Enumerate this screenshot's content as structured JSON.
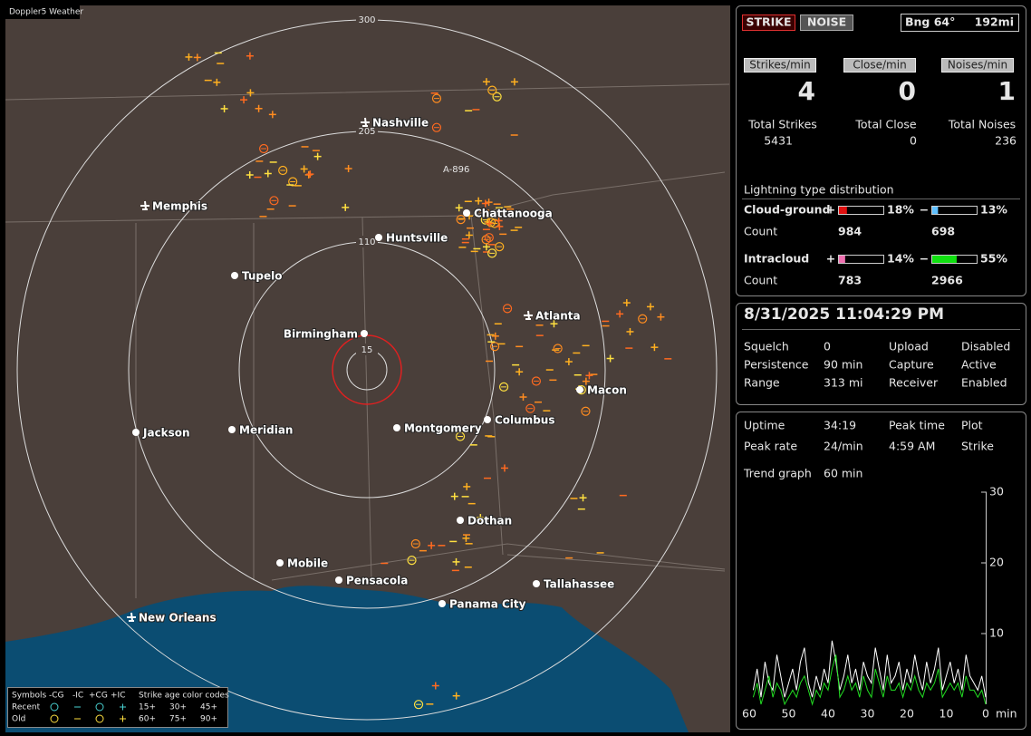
{
  "app": {
    "title": "Doppler5 Weather"
  },
  "map": {
    "ring_labels": [
      "300",
      "205",
      "110",
      "15"
    ],
    "station_label": "A-896",
    "cities": [
      "Nashville",
      "Memphis",
      "Huntsville",
      "Chattanooga",
      "Tupelo",
      "Birmingham",
      "Atlanta",
      "Macon",
      "Jackson",
      "Meridian",
      "Montgomery",
      "Columbus",
      "Dothan",
      "Mobile",
      "Pensacola",
      "Tallahassee",
      "Panama City",
      "New Orleans"
    ]
  },
  "legend": {
    "header": [
      "Symbols",
      "-CG",
      "-IC",
      "+CG",
      "+IC",
      "Strike age color codes"
    ],
    "recent": "Recent",
    "old": "Old",
    "recent_ages": [
      "15+",
      "30+",
      "45+"
    ],
    "old_ages": [
      "60+",
      "75+",
      "90+"
    ]
  },
  "counters": {
    "buttons": [
      "STRIKE",
      "NOISE"
    ],
    "bearing": "Bng 64°",
    "distance": "192mi",
    "rates": [
      {
        "label": "Strikes/min",
        "value": 4
      },
      {
        "label": "Close/min",
        "value": 0
      },
      {
        "label": "Noises/min",
        "value": 1
      }
    ],
    "totals": [
      {
        "label": "Total Strikes",
        "value": 5431
      },
      {
        "label": "Total Close",
        "value": 0
      },
      {
        "label": "Total Noises",
        "value": 236
      }
    ]
  },
  "distribution": {
    "title": "Lightning type distribution",
    "rows": [
      {
        "label": "Cloud-ground",
        "count_label": "Count",
        "positive": {
          "sign": "+",
          "percent": {
            "value": 18,
            "label": "18%"
          },
          "count": 984
        },
        "negative": {
          "sign": "−",
          "percent": {
            "value": 13,
            "label": "13%"
          },
          "count": 698
        }
      },
      {
        "label": "Intracloud",
        "count_label": "Count",
        "positive": {
          "sign": "+",
          "percent": {
            "value": 14,
            "label": "14%"
          },
          "count": 783
        },
        "negative": {
          "sign": "−",
          "percent": {
            "value": 55,
            "label": "55%"
          },
          "count": 2966
        }
      }
    ]
  },
  "status": {
    "datetime": "8/31/2025 11:04:29 PM",
    "left": [
      {
        "label": "Squelch",
        "value": "0"
      },
      {
        "label": "Persistence",
        "value": "90 min"
      },
      {
        "label": "Range",
        "value": "313 mi"
      }
    ],
    "right": [
      {
        "label": "Upload",
        "value": "Disabled"
      },
      {
        "label": "Capture",
        "value": "Active"
      },
      {
        "label": "Receiver",
        "value": "Enabled"
      }
    ]
  },
  "info": {
    "uptime": {
      "label": "Uptime",
      "value": "34:19"
    },
    "peak_rate": {
      "label": "Peak rate",
      "value": "24/min"
    },
    "peak_time": {
      "label": "Peak time",
      "value": "4:59 AM"
    },
    "plot": {
      "label": "Plot",
      "value": "Strike"
    },
    "trend": {
      "label": "Trend graph",
      "value": "60 min"
    }
  },
  "chart_data": {
    "type": "line",
    "x_unit": "min",
    "xlim": [
      60,
      0
    ],
    "xticks": [
      60,
      50,
      40,
      30,
      20,
      10,
      0
    ],
    "ylim": [
      0,
      30
    ],
    "yticks": [
      10,
      20,
      30
    ],
    "x": [
      59,
      58,
      57,
      56,
      55,
      54,
      53,
      52,
      51,
      50,
      49,
      48,
      47,
      46,
      45,
      44,
      43,
      42,
      41,
      40,
      39,
      38,
      37,
      36,
      35,
      34,
      33,
      32,
      31,
      30,
      29,
      28,
      27,
      26,
      25,
      24,
      23,
      22,
      21,
      20,
      19,
      18,
      17,
      16,
      15,
      14,
      13,
      12,
      11,
      10,
      9,
      8,
      7,
      6,
      5,
      4,
      3,
      2,
      1,
      0
    ],
    "series": [
      {
        "name": "Strike",
        "color": "#ffffff",
        "values": [
          2,
          5,
          1,
          6,
          3,
          2,
          7,
          4,
          1,
          3,
          5,
          2,
          6,
          8,
          3,
          1,
          4,
          2,
          5,
          3,
          9,
          6,
          2,
          4,
          7,
          3,
          5,
          2,
          6,
          4,
          3,
          8,
          5,
          2,
          7,
          3,
          4,
          6,
          2,
          5,
          3,
          7,
          4,
          2,
          6,
          3,
          5,
          8,
          2,
          4,
          6,
          3,
          5,
          2,
          7,
          4,
          3,
          2,
          4,
          1
        ]
      },
      {
        "name": "Intracloud",
        "color": "#22dd22",
        "values": [
          1,
          3,
          0,
          2,
          4,
          1,
          3,
          2,
          0,
          1,
          2,
          1,
          3,
          4,
          2,
          0,
          2,
          1,
          3,
          2,
          5,
          7,
          1,
          2,
          4,
          2,
          3,
          1,
          4,
          2,
          1,
          5,
          3,
          1,
          4,
          2,
          2,
          3,
          1,
          3,
          2,
          4,
          2,
          1,
          3,
          2,
          3,
          5,
          1,
          2,
          3,
          2,
          3,
          1,
          4,
          2,
          2,
          1,
          2,
          0
        ]
      }
    ]
  }
}
